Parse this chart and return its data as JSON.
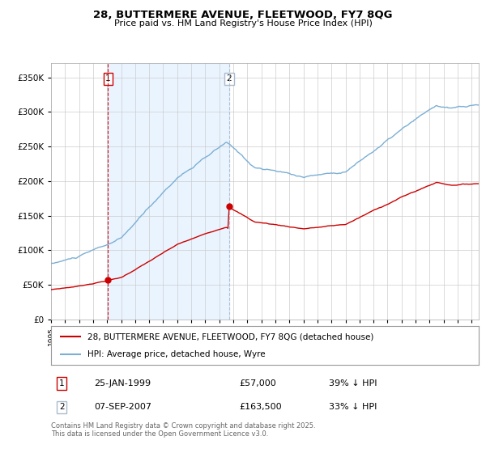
{
  "title": "28, BUTTERMERE AVENUE, FLEETWOOD, FY7 8QG",
  "subtitle": "Price paid vs. HM Land Registry's House Price Index (HPI)",
  "legend_line1": "28, BUTTERMERE AVENUE, FLEETWOOD, FY7 8QG (detached house)",
  "legend_line2": "HPI: Average price, detached house, Wyre",
  "transaction1_date": "25-JAN-1999",
  "transaction1_price": "£57,000",
  "transaction1_hpi": "39% ↓ HPI",
  "transaction1_year": 1999.07,
  "transaction1_value": 57000,
  "transaction2_date": "07-SEP-2007",
  "transaction2_price": "£163,500",
  "transaction2_hpi": "33% ↓ HPI",
  "transaction2_year": 2007.69,
  "transaction2_value": 163500,
  "price_line_color": "#cc0000",
  "hpi_line_color": "#7bafd4",
  "hpi_fill_color": "#ddeeff",
  "vline1_color": "#cc0000",
  "vline2_color": "#aabbcc",
  "background_color": "#ffffff",
  "grid_color": "#cccccc",
  "footer_text": "Contains HM Land Registry data © Crown copyright and database right 2025.\nThis data is licensed under the Open Government Licence v3.0.",
  "ylim": [
    0,
    370000
  ],
  "xlim_start": 1995.0,
  "xlim_end": 2025.5
}
